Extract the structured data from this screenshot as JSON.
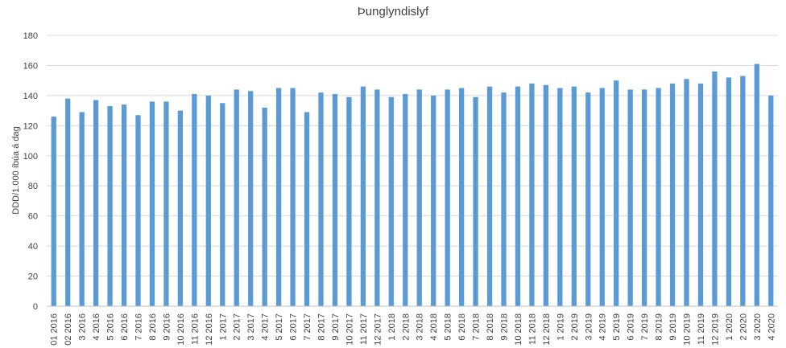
{
  "chart_data": {
    "type": "bar",
    "title": "Þunglyndislyf",
    "xlabel": "",
    "ylabel": "DDD/1.000 íbúa á dag",
    "ylim": [
      0,
      180
    ],
    "yticks": [
      0,
      20,
      40,
      60,
      80,
      100,
      120,
      140,
      160,
      180
    ],
    "grid": true,
    "legend": "none",
    "bar_color": "#5b9bd5",
    "categories": [
      "01 2016",
      "02 2016",
      "3 2016",
      "4 2016",
      "5 2016",
      "6 2016",
      "7 2016",
      "8 2016",
      "9 2016",
      "10 2016",
      "11 2016",
      "12 2016",
      "1 2017",
      "2 2017",
      "3 2017",
      "4 2017",
      "5 2017",
      "6 2017",
      "7 2017",
      "8 2017",
      "9 2017",
      "10 2017",
      "11 2017",
      "12 2017",
      "1 2018",
      "2 2018",
      "3 2018",
      "4 2018",
      "5 2018",
      "6 2018",
      "7 2018",
      "8 2018",
      "9 2018",
      "10 2018",
      "11 2018",
      "12 2018",
      "1 2019",
      "2 2019",
      "3 2019",
      "4 2019",
      "5 2019",
      "6 2019",
      "7 2019",
      "8 2019",
      "9 2019",
      "10 2019",
      "11 2019",
      "12 2019",
      "1 2020",
      "2 2020",
      "3 2020",
      "4 2020"
    ],
    "values": [
      126,
      138,
      129,
      137,
      133,
      134,
      127,
      136,
      136,
      130,
      141,
      140,
      135,
      144,
      143,
      132,
      145,
      145,
      129,
      142,
      141,
      139,
      146,
      144,
      139,
      141,
      144,
      140,
      144,
      145,
      139,
      146,
      142,
      146,
      148,
      147,
      145,
      146,
      142,
      145,
      150,
      144,
      144,
      145,
      148,
      151,
      148,
      156,
      152,
      153,
      161,
      140
    ]
  }
}
